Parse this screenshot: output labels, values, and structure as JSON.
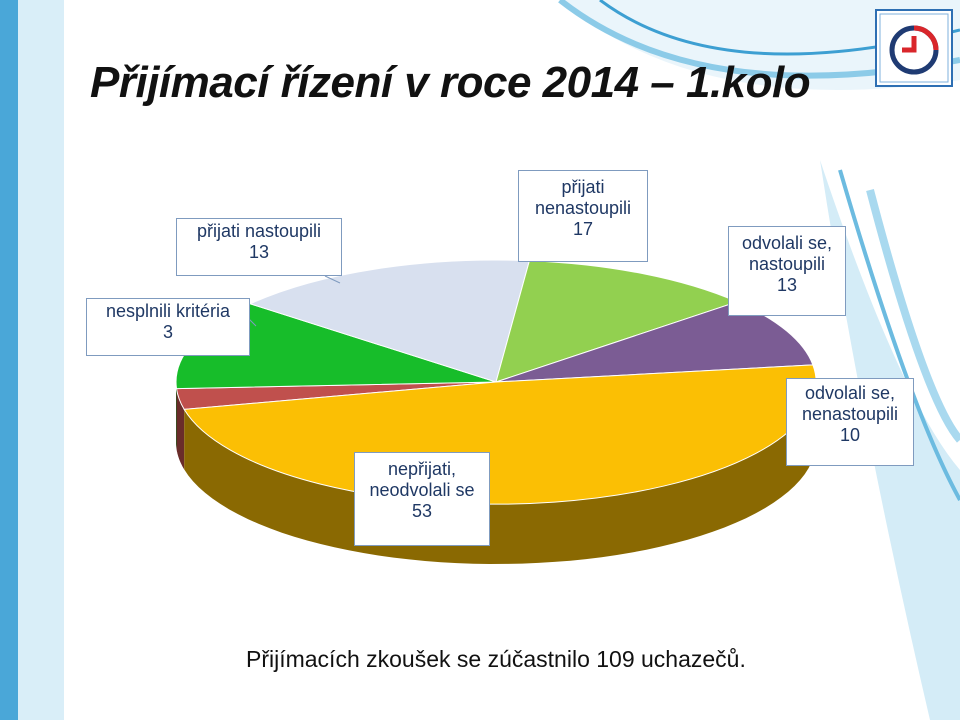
{
  "slide": {
    "title": "Přijímací řízení v roce 2014 – 1.kolo",
    "footer": "Přijímacích zkoušek se zúčastnilo 109 uchazečů."
  },
  "chart_data": {
    "type": "pie",
    "title": "",
    "slices": [
      {
        "label": "nesplnili kritéria",
        "value": 3,
        "color": "#c0504d"
      },
      {
        "label": "přijati nastoupili",
        "value": 13,
        "color": "#17bd2a"
      },
      {
        "label": "přijati nenastoupili",
        "value": 17,
        "color": "#d8e0ef"
      },
      {
        "label": "odvolali se, nastoupili",
        "value": 13,
        "color": "#92d050"
      },
      {
        "label": "odvolali se, nenastoupili",
        "value": 10,
        "color": "#7b5c94"
      },
      {
        "label": "nepřijati, neodvolali se",
        "value": 53,
        "color": "#fbbf04"
      }
    ]
  }
}
